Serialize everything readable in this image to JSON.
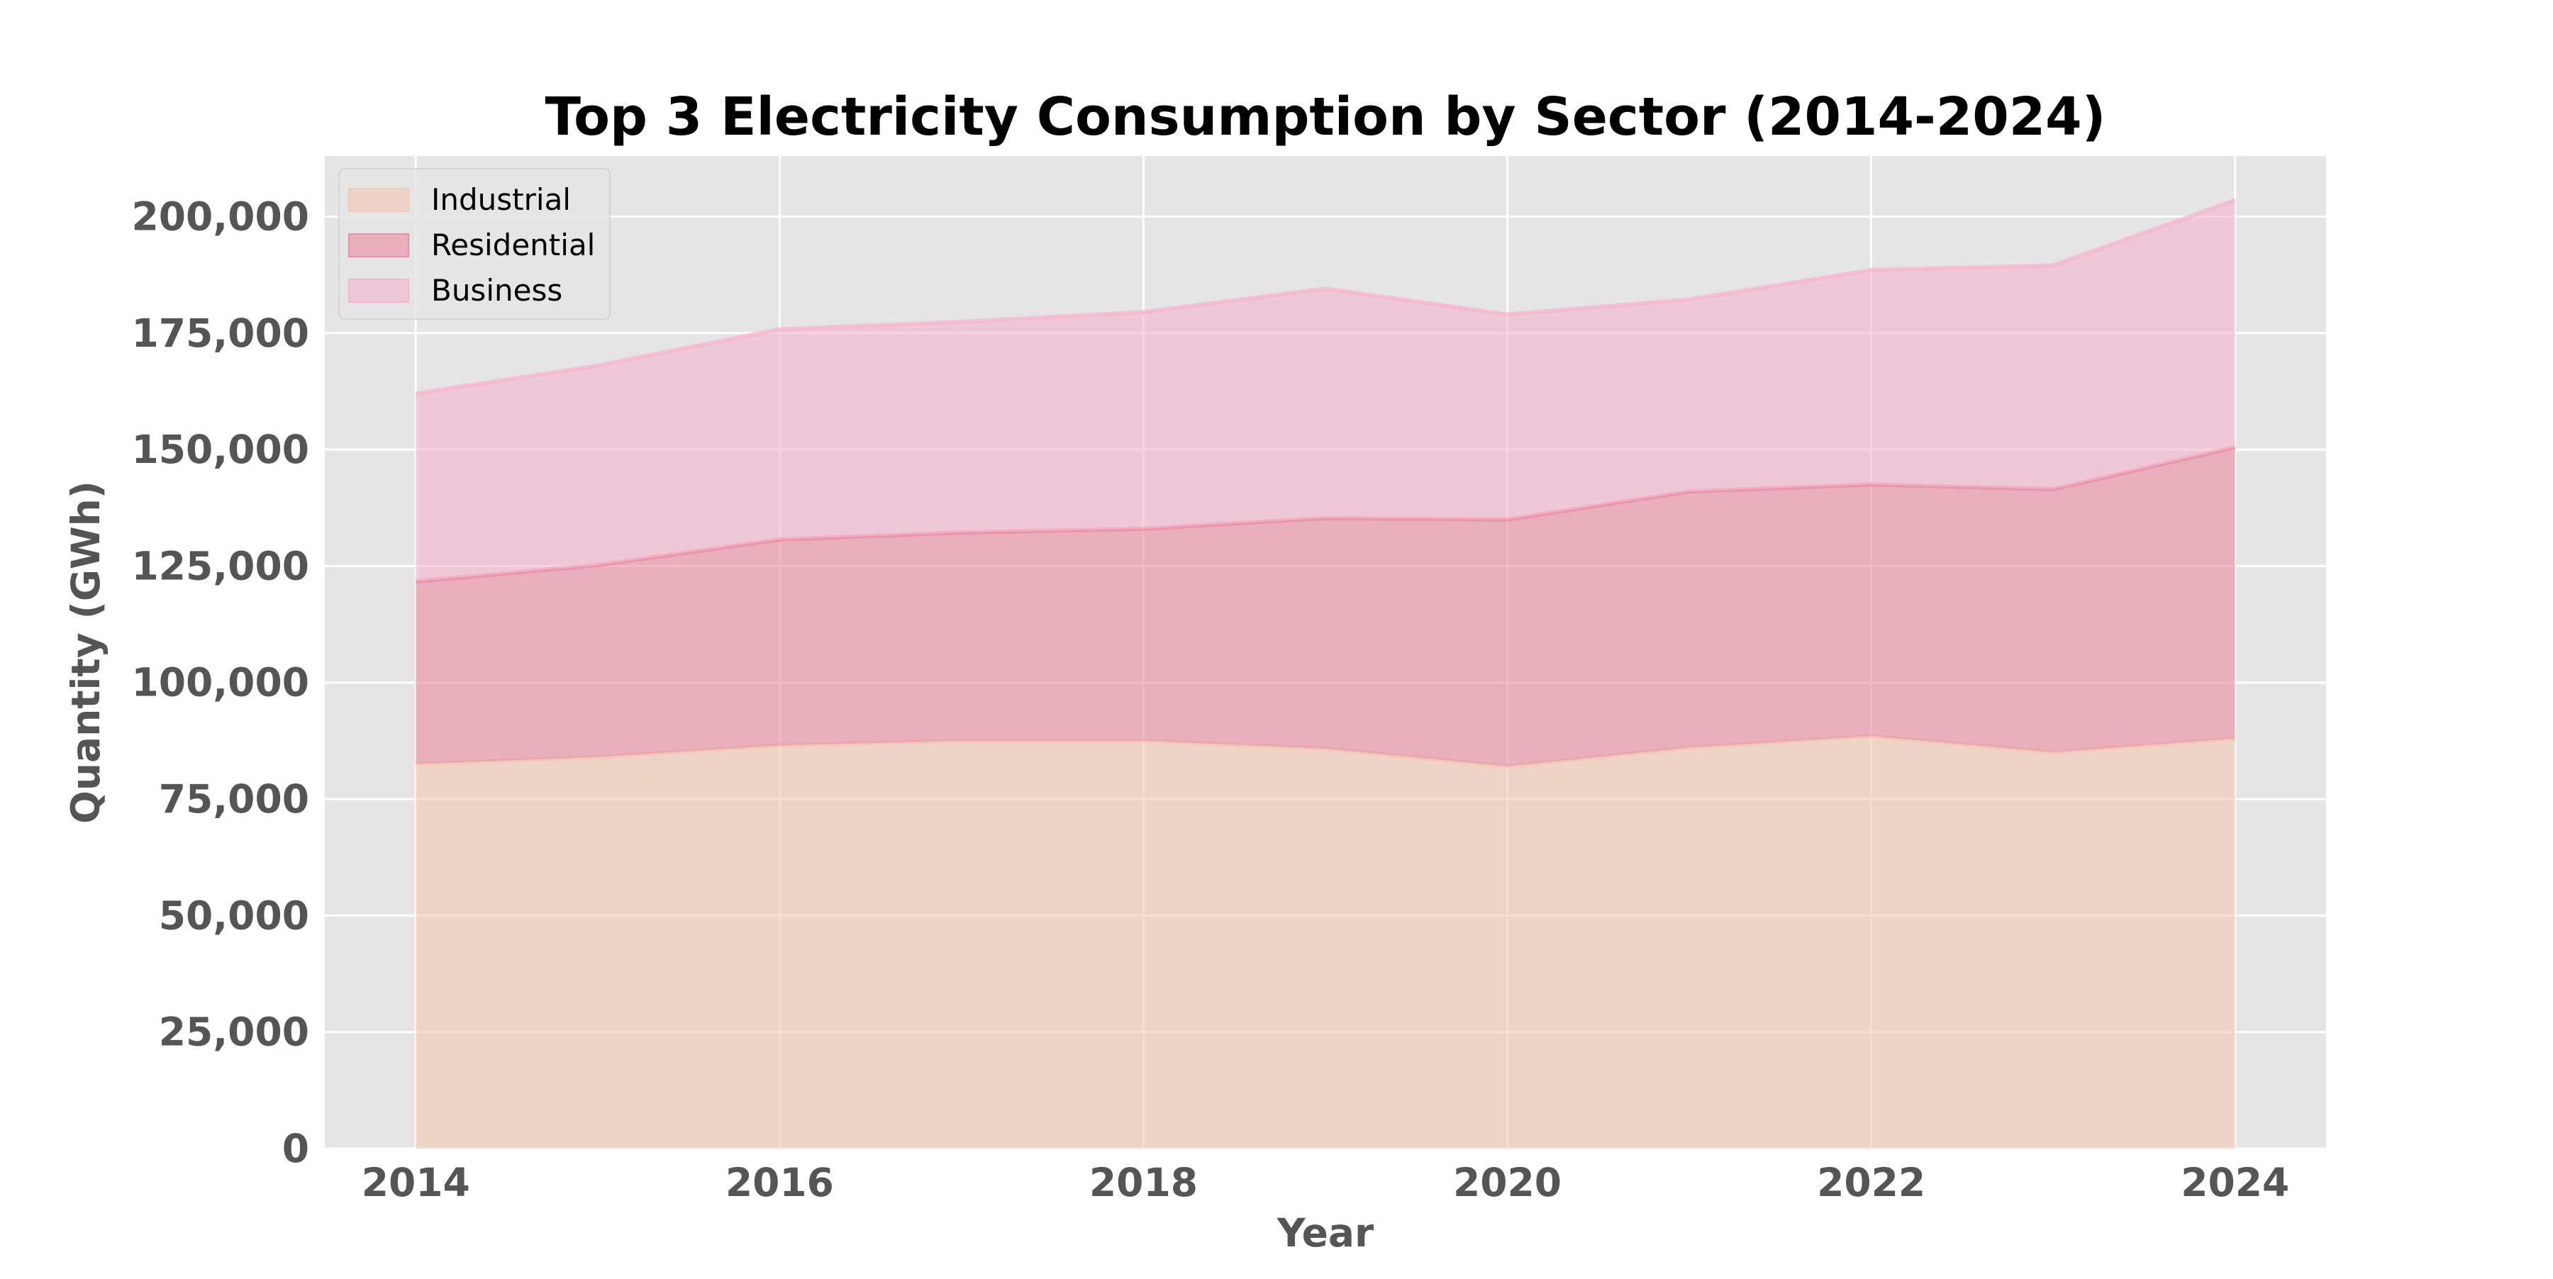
{
  "chart_data": {
    "type": "area",
    "stacked": true,
    "title": "Top 3 Electricity Consumption by Sector (2014-2024)",
    "xlabel": "Year",
    "ylabel": "Quantity (GWh)",
    "x": [
      2014,
      2015,
      2016,
      2017,
      2018,
      2019,
      2020,
      2021,
      2022,
      2023,
      2024
    ],
    "x_ticks": [
      "2014",
      "2016",
      "2018",
      "2020",
      "2022",
      "2024"
    ],
    "y_ticks": [
      "0",
      "25,000",
      "50,000",
      "75,000",
      "100,000",
      "125,000",
      "150,000",
      "175,000",
      "200,000"
    ],
    "xlim": [
      2013.5,
      2024.5
    ],
    "ylim": [
      0,
      213000
    ],
    "grid": true,
    "legend_position": "top-left",
    "series": [
      {
        "name": "Industrial",
        "color": "#f4c8b4",
        "values": [
          82500,
          84000,
          86500,
          87500,
          87500,
          85800,
          82000,
          86000,
          88500,
          85000,
          88000
        ]
      },
      {
        "name": "Residential",
        "color": "#ec8ea4",
        "values": [
          39200,
          41200,
          44200,
          44700,
          45500,
          49500,
          53000,
          55000,
          54000,
          56500,
          62500
        ]
      },
      {
        "name": "Business",
        "color": "#f6b6d0",
        "values": [
          40300,
          42800,
          45100,
          45200,
          46500,
          49200,
          44000,
          41200,
          46000,
          48000,
          53000
        ]
      }
    ]
  }
}
